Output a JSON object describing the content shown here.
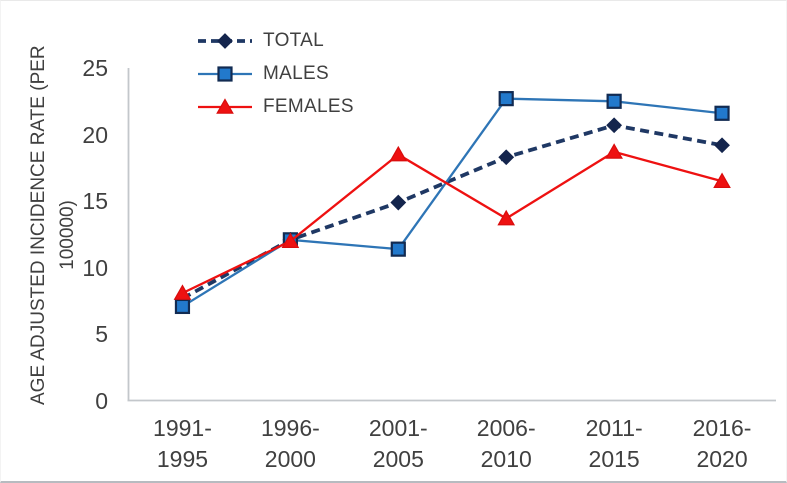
{
  "chart_data": {
    "type": "line",
    "title": "",
    "ylabel_lines": [
      "AGE ADJUSTED INCIDENCE RATE (PER",
      "100000)"
    ],
    "ylabel_full": "AGE ADJUSTED INCIDENCE RATE (PER 100000)",
    "xlabel": "",
    "ylim": [
      0,
      25
    ],
    "yticks": [
      25,
      20,
      15,
      10,
      5,
      0
    ],
    "grid": false,
    "legend_position": "top-left-inside",
    "categories": [
      {
        "line1": "1991-",
        "line2": "1995"
      },
      {
        "line1": "1996-",
        "line2": "2000"
      },
      {
        "line1": "2001-",
        "line2": "2005"
      },
      {
        "line1": "2006-",
        "line2": "2010"
      },
      {
        "line1": "2011-",
        "line2": "2015"
      },
      {
        "line1": "2016-",
        "line2": "2020"
      }
    ],
    "series": [
      {
        "name": "TOTAL",
        "values": [
          7.7,
          12.1,
          14.9,
          18.3,
          20.7,
          19.2
        ],
        "color": "#1f3864",
        "marker": "diamond",
        "marker_fill": "#14254d",
        "marker_stroke": "#14254d",
        "line_style": "dashed"
      },
      {
        "name": "MALES",
        "values": [
          7.1,
          12.1,
          11.4,
          22.7,
          22.5,
          21.6
        ],
        "color": "#2e75b6",
        "marker": "square",
        "marker_fill": "#2279cc",
        "marker_stroke": "#122b52",
        "line_style": "solid"
      },
      {
        "name": "FEMALES",
        "values": [
          8.1,
          12.0,
          18.5,
          13.7,
          18.7,
          16.5
        ],
        "color": "#ee1111",
        "marker": "triangle",
        "marker_fill": "#ee1111",
        "marker_stroke": "#d90d0d",
        "line_style": "solid"
      }
    ],
    "axis_color": "#c3c7cb",
    "text_color": "#404040"
  }
}
